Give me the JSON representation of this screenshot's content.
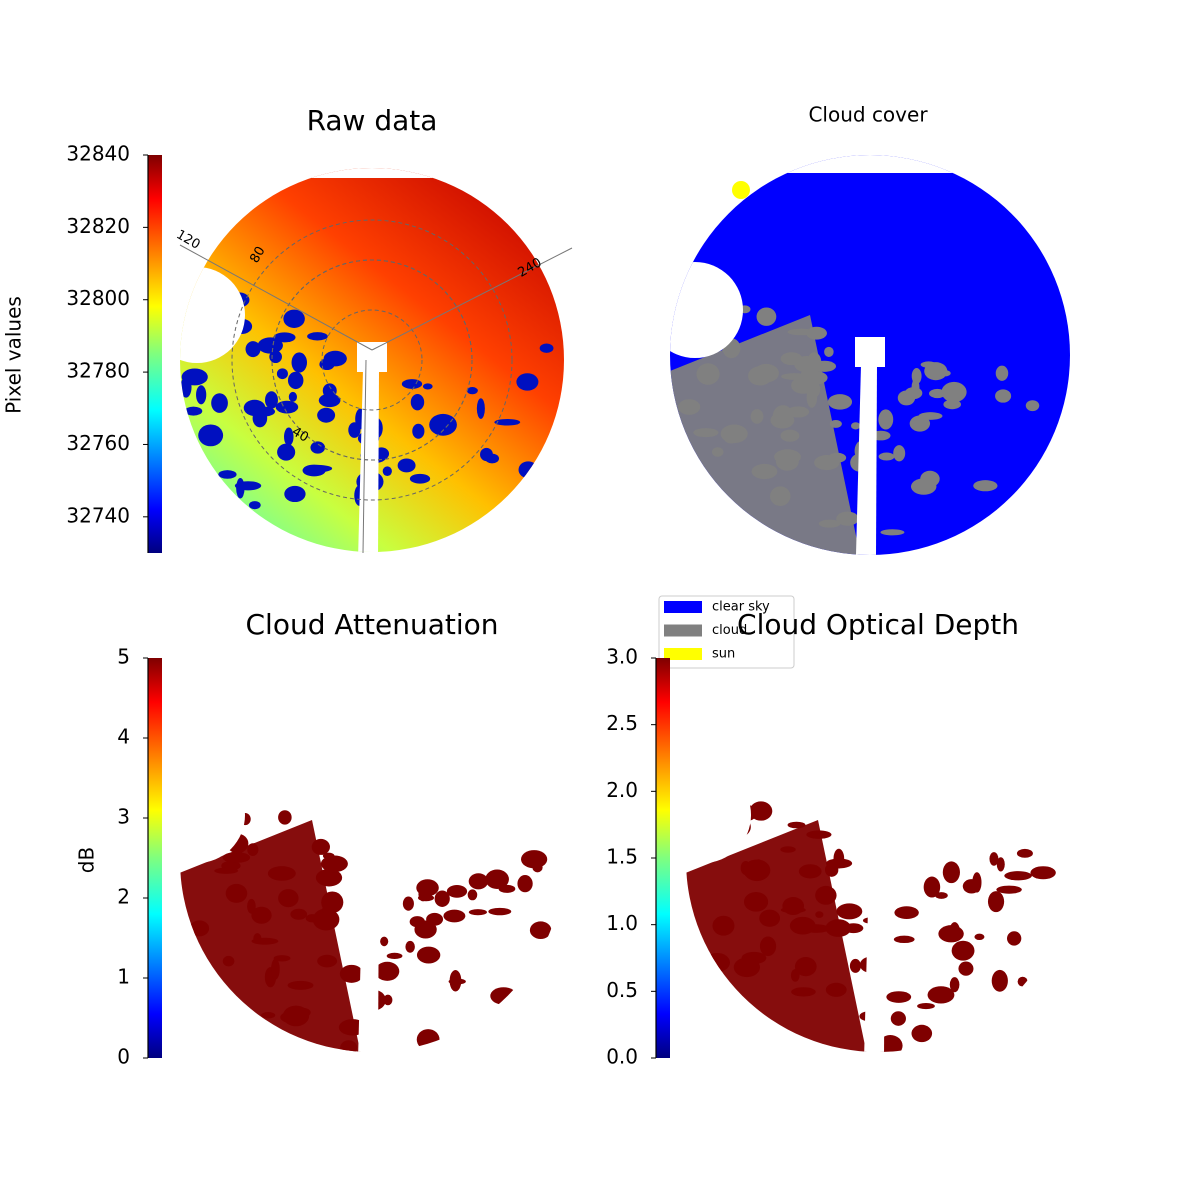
{
  "chart_data": [
    {
      "type": "image",
      "title": "Raw data",
      "colorbar": {
        "label": "Pixel values",
        "colormap": "jet",
        "ylim": [
          32730,
          32840
        ],
        "yticks": [
          32740,
          32760,
          32780,
          32800,
          32820,
          32840
        ]
      },
      "polar_labels": [
        "120",
        "80",
        "240",
        "40"
      ]
    },
    {
      "type": "image",
      "title": "Cloud cover",
      "legend": [
        {
          "name": "clear sky",
          "color": "#0000ff"
        },
        {
          "name": "cloud",
          "color": "#808080"
        },
        {
          "name": "sun",
          "color": "#ffff00"
        }
      ]
    },
    {
      "type": "image",
      "title": "Cloud Attenuation",
      "colorbar": {
        "label": "dB",
        "colormap": "jet",
        "ylim": [
          0,
          5
        ],
        "yticks": [
          0,
          1,
          2,
          3,
          4,
          5
        ]
      }
    },
    {
      "type": "image",
      "title": "Cloud Optical Depth",
      "colorbar": {
        "colormap": "jet",
        "ylim": [
          0,
          3
        ],
        "yticks": [
          {
            "value": 0,
            "label": "0.0"
          },
          {
            "value": 0.5,
            "label": "0.5"
          },
          {
            "value": 1,
            "label": "1.0"
          },
          {
            "value": 1.5,
            "label": "1.5"
          },
          {
            "value": 2,
            "label": "2.0"
          },
          {
            "value": 2.5,
            "label": "2.5"
          },
          {
            "value": 3,
            "label": "3.0"
          }
        ]
      }
    }
  ]
}
